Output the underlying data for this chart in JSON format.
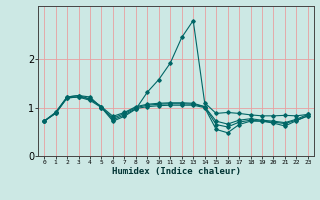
{
  "xlabel": "Humidex (Indice chaleur)",
  "bg_color": "#cce8e4",
  "line_color": "#006666",
  "grid_color": "#e8a0a0",
  "xlim": [
    -0.5,
    23.5
  ],
  "ylim": [
    0,
    3.1
  ],
  "yticks": [
    0,
    1,
    2
  ],
  "xticks": [
    0,
    1,
    2,
    3,
    4,
    5,
    6,
    7,
    8,
    9,
    10,
    11,
    12,
    13,
    14,
    15,
    16,
    17,
    18,
    19,
    20,
    21,
    22,
    23
  ],
  "series": [
    {
      "x": [
        0,
        1,
        2,
        3,
        4,
        5,
        6,
        7,
        8,
        9,
        10,
        11,
        12,
        13,
        14,
        15,
        16,
        17,
        18,
        19,
        20,
        21,
        22,
        23
      ],
      "y": [
        0.72,
        0.9,
        1.22,
        1.25,
        1.22,
        1.0,
        0.72,
        0.82,
        0.97,
        1.32,
        1.58,
        1.92,
        2.45,
        2.8,
        1.1,
        0.88,
        0.9,
        0.88,
        0.85,
        0.83,
        0.83,
        0.84,
        0.83,
        0.86
      ]
    },
    {
      "x": [
        0,
        1,
        2,
        3,
        4,
        5,
        6,
        7,
        8,
        9,
        10,
        11,
        12,
        13,
        14,
        15,
        16,
        17,
        18,
        19,
        20,
        21,
        22,
        23
      ],
      "y": [
        0.72,
        0.9,
        1.22,
        1.25,
        1.18,
        1.02,
        0.75,
        0.85,
        0.98,
        1.02,
        1.04,
        1.05,
        1.05,
        1.05,
        1.0,
        0.55,
        0.48,
        0.65,
        0.72,
        0.72,
        0.68,
        0.62,
        0.73,
        0.83
      ]
    },
    {
      "x": [
        0,
        1,
        2,
        3,
        4,
        5,
        6,
        7,
        8,
        9,
        10,
        11,
        12,
        13,
        14,
        15,
        16,
        17,
        18,
        19,
        20,
        21,
        22,
        23
      ],
      "y": [
        0.72,
        0.88,
        1.2,
        1.22,
        1.15,
        1.0,
        0.78,
        0.88,
        1.0,
        1.05,
        1.07,
        1.08,
        1.08,
        1.07,
        1.02,
        0.65,
        0.6,
        0.7,
        0.74,
        0.72,
        0.7,
        0.67,
        0.74,
        0.83
      ]
    },
    {
      "x": [
        0,
        1,
        2,
        3,
        4,
        5,
        6,
        7,
        8,
        9,
        10,
        11,
        12,
        13,
        14,
        15,
        16,
        17,
        18,
        19,
        20,
        21,
        22,
        23
      ],
      "y": [
        0.72,
        0.88,
        1.2,
        1.22,
        1.18,
        1.02,
        0.82,
        0.9,
        1.02,
        1.07,
        1.09,
        1.1,
        1.1,
        1.09,
        1.02,
        0.72,
        0.66,
        0.74,
        0.77,
        0.74,
        0.72,
        0.69,
        0.76,
        0.86
      ]
    }
  ]
}
